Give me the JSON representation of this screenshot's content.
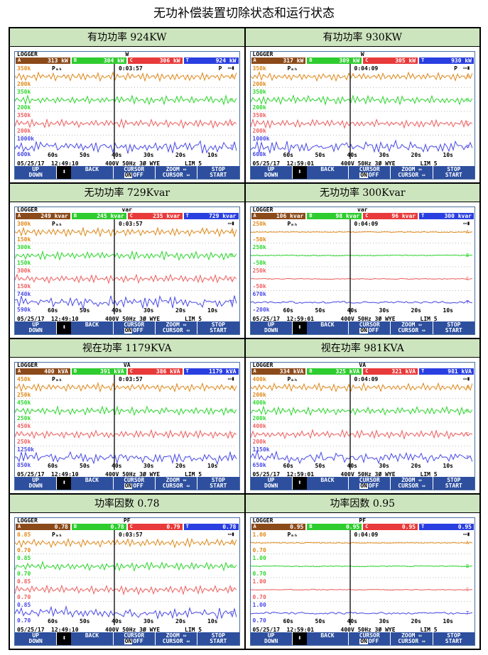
{
  "title": "无功补偿装置切除状态和运行状态",
  "common": {
    "logger": "LOGGER",
    "buttons": {
      "up": "UP",
      "down": "DOWN",
      "back": "BACK",
      "cursor": "CURSOR",
      "on": "ON",
      "off": "OFF",
      "zoom": "ZOOM ⇔",
      "cursor2": "CURSOR ⇔",
      "stop": "STOP",
      "start": "START"
    },
    "time_ticks": [
      "60s",
      "50s",
      "40s",
      "30s",
      "20s",
      "10s"
    ],
    "p_label": "Pₘₕ",
    "voltage_info": "400V  50Hz 3Ø WYE",
    "limit": "LIM 5",
    "colors": {
      "A": "#8b4a1a",
      "B": "#2ecc2e",
      "C": "#e83a3a",
      "T": "#2a3fe0",
      "A_wave": "#e08a1a",
      "B_wave": "#2ed82e",
      "C_wave": "#f06060",
      "T_wave": "#4a4ae8"
    }
  },
  "panels": [
    {
      "heading": "有功功率 924KW",
      "unit": "W",
      "phase_vals": [
        "313 kW",
        "304 kW",
        "306 kW",
        "924 kW"
      ],
      "timer": "0:03:57",
      "date": "05/25/17",
      "clock": "12:49:10",
      "status": "P",
      "scale": [
        "350k",
        "200k",
        "350k",
        "200k",
        "350k",
        "200k",
        "1000k",
        "600k"
      ],
      "flat": false
    },
    {
      "heading": "有功功率 930KW",
      "unit": "W",
      "phase_vals": [
        "317 kW",
        "309 kW",
        "305 kW",
        "930 kW"
      ],
      "timer": "0:04:09",
      "date": "05/25/17",
      "clock": "12:59:01",
      "status": "P",
      "scale": [
        "350k",
        "200k",
        "350k",
        "200k",
        "350k",
        "200k",
        "1000k",
        "600k"
      ],
      "flat": false
    },
    {
      "heading": "无功功率 729Kvar",
      "unit": "var",
      "phase_vals": [
        "249 kvar",
        "245 kvar",
        "235 kvar",
        "729 kvar"
      ],
      "timer": "0:03:57",
      "date": "05/25/17",
      "clock": "12:49:10",
      "status": "",
      "scale": [
        "300k",
        "150k",
        "300k",
        "150k",
        "300k",
        "150k",
        "740k",
        "590k"
      ],
      "flat": false
    },
    {
      "heading": "无功功率 300Kvar",
      "unit": "var",
      "phase_vals": [
        "106 kvar",
        "98 kvar",
        "96 kvar",
        "300 kvar"
      ],
      "timer": "0:04:09",
      "date": "05/25/17",
      "clock": "12:59:01",
      "status": "",
      "scale": [
        "250k",
        "-50k",
        "250k",
        "-50k",
        "250k",
        "-50k",
        "670k",
        "-200k"
      ],
      "flat": true
    },
    {
      "heading": "视在功率 1179KVA",
      "unit": "VA",
      "phase_vals": [
        "400 kVA",
        "391 kVA",
        "386 kVA",
        "1179 kVA"
      ],
      "timer": "0:03:57",
      "date": "05/25/17",
      "clock": "12:49:10",
      "status": "",
      "scale": [
        "450k",
        "250k",
        "450k",
        "250k",
        "450k",
        "250k",
        "1250k",
        "850k"
      ],
      "flat": false
    },
    {
      "heading": "视在功率 981KVA",
      "unit": "VA",
      "phase_vals": [
        "334 kVA",
        "325 kVA",
        "321 kVA",
        "981 kVA"
      ],
      "timer": "0:04:09",
      "date": "05/25/17",
      "clock": "12:59:01",
      "status": "",
      "scale": [
        "400k",
        "200k",
        "400k",
        "200k",
        "400k",
        "200k",
        "1150k",
        "650k"
      ],
      "flat": false
    },
    {
      "heading": "功率因数 0.78",
      "unit": "PF",
      "phase_vals": [
        "0.78",
        "0.78",
        "0.79",
        "0.78"
      ],
      "timer": "0:03:57",
      "date": "05/25/17",
      "clock": "12:49:10",
      "status": "",
      "scale": [
        "0.85",
        "0.70",
        "0.85",
        "0.70",
        "0.85",
        "0.70",
        "0.85",
        "0.70"
      ],
      "flat": false
    },
    {
      "heading": "功率因数 0.95",
      "unit": "PF",
      "phase_vals": [
        "0.95",
        "0.95",
        "0.95",
        "0.95"
      ],
      "timer": "0:04:09",
      "date": "05/25/17",
      "clock": "12:59:01",
      "status": "",
      "scale": [
        "1.00",
        "0.70",
        "1.00",
        "0.70",
        "1.00",
        "0.70",
        "1.00",
        "0.70"
      ],
      "flat": true
    }
  ]
}
